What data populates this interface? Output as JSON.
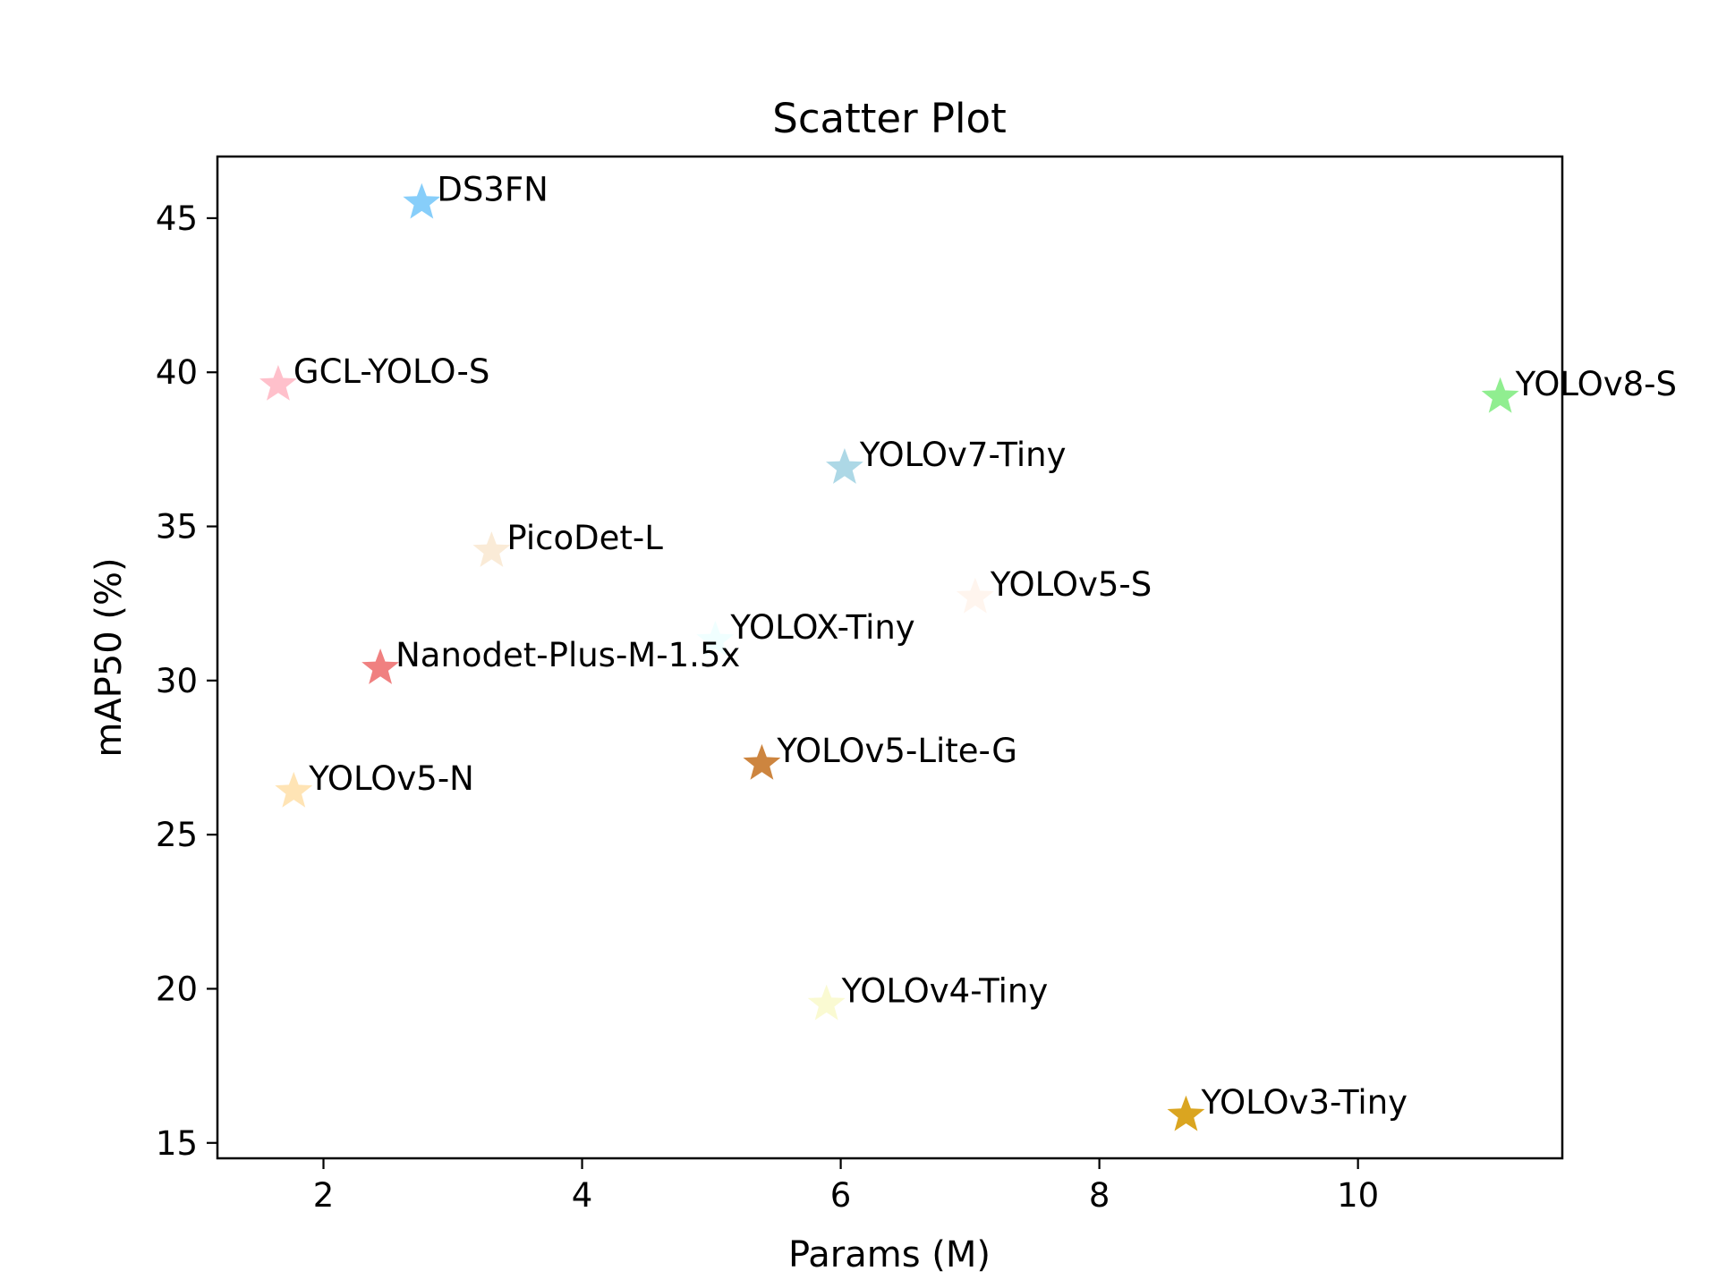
{
  "chart_data": {
    "type": "scatter",
    "title": "Scatter Plot",
    "xlabel": "Params (M)",
    "ylabel": "mAP50 (%)",
    "xlim": [
      1.18,
      11.58
    ],
    "ylim": [
      14.5,
      47.0
    ],
    "xticks": [
      2,
      4,
      6,
      8,
      10
    ],
    "yticks": [
      15,
      20,
      25,
      30,
      35,
      40,
      45
    ],
    "xtick_labels": [
      "2",
      "4",
      "6",
      "8",
      "10"
    ],
    "ytick_labels": [
      "15",
      "20",
      "25",
      "30",
      "35",
      "40",
      "45"
    ],
    "grid": false,
    "legend": false,
    "marker": "star",
    "points": [
      {
        "label": "DS3FN",
        "x": 2.76,
        "y": 45.5,
        "color": "#87CEFA"
      },
      {
        "label": "GCL-YOLO-S",
        "x": 1.65,
        "y": 39.6,
        "color": "#FFC0CB"
      },
      {
        "label": "YOLOv8-S",
        "x": 11.1,
        "y": 39.2,
        "color": "#90EE90"
      },
      {
        "label": "YOLOv7-Tiny",
        "x": 6.03,
        "y": 36.9,
        "color": "#ADD8E6"
      },
      {
        "label": "PicoDet-L",
        "x": 3.3,
        "y": 34.2,
        "color": "#FAEBD7"
      },
      {
        "label": "YOLOv5-S",
        "x": 7.04,
        "y": 32.7,
        "color": "#FFF5EE"
      },
      {
        "label": "YOLOX-Tiny",
        "x": 5.03,
        "y": 31.3,
        "color": "#F0FFFF"
      },
      {
        "label": "Nanodet-Plus-M-1.5x",
        "x": 2.44,
        "y": 30.4,
        "color": "#F08080"
      },
      {
        "label": "YOLOv5-Lite-G",
        "x": 5.39,
        "y": 27.3,
        "color": "#CD853F"
      },
      {
        "label": "YOLOv5-N",
        "x": 1.77,
        "y": 26.4,
        "color": "#FFE4B5"
      },
      {
        "label": "YOLOv4-Tiny",
        "x": 5.89,
        "y": 19.5,
        "color": "#FAFAD2"
      },
      {
        "label": "YOLOv3-Tiny",
        "x": 8.67,
        "y": 15.9,
        "color": "#DAA520"
      }
    ]
  }
}
